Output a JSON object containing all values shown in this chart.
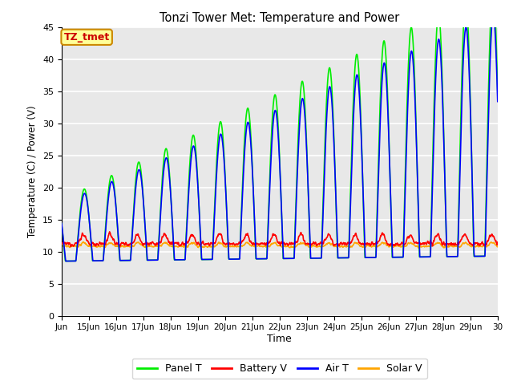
{
  "title": "Tonzi Tower Met: Temperature and Power",
  "xlabel": "Time",
  "ylabel": "Temperature (C) / Power (V)",
  "annotation": "TZ_tmet",
  "ylim": [
    0,
    45
  ],
  "yticks": [
    0,
    5,
    10,
    15,
    20,
    25,
    30,
    35,
    40,
    45
  ],
  "x_tick_labels": [
    "Jun",
    "15Jun",
    "16Jun",
    "17Jun",
    "18Jun",
    "19Jun",
    "20Jun",
    "21Jun",
    "22Jun",
    "23Jun",
    "24Jun",
    "25Jun",
    "26Jun",
    "27Jun",
    "28Jun",
    "29Jun",
    "30"
  ],
  "series": {
    "panel_t": {
      "color": "#00ee00",
      "label": "Panel T",
      "linewidth": 1.2,
      "zorder": 3
    },
    "battery_v": {
      "color": "#ff0000",
      "label": "Battery V",
      "linewidth": 1.2,
      "zorder": 4
    },
    "air_t": {
      "color": "#0000ff",
      "label": "Air T",
      "linewidth": 1.2,
      "zorder": 5
    },
    "solar_v": {
      "color": "#ffa500",
      "label": "Solar V",
      "linewidth": 1.2,
      "zorder": 2
    }
  },
  "bg_color": "#e8e8e8",
  "fig_bg": "#ffffff",
  "annotation_bg": "#ffff99",
  "annotation_border": "#cc8800",
  "annotation_text_color": "#cc0000"
}
